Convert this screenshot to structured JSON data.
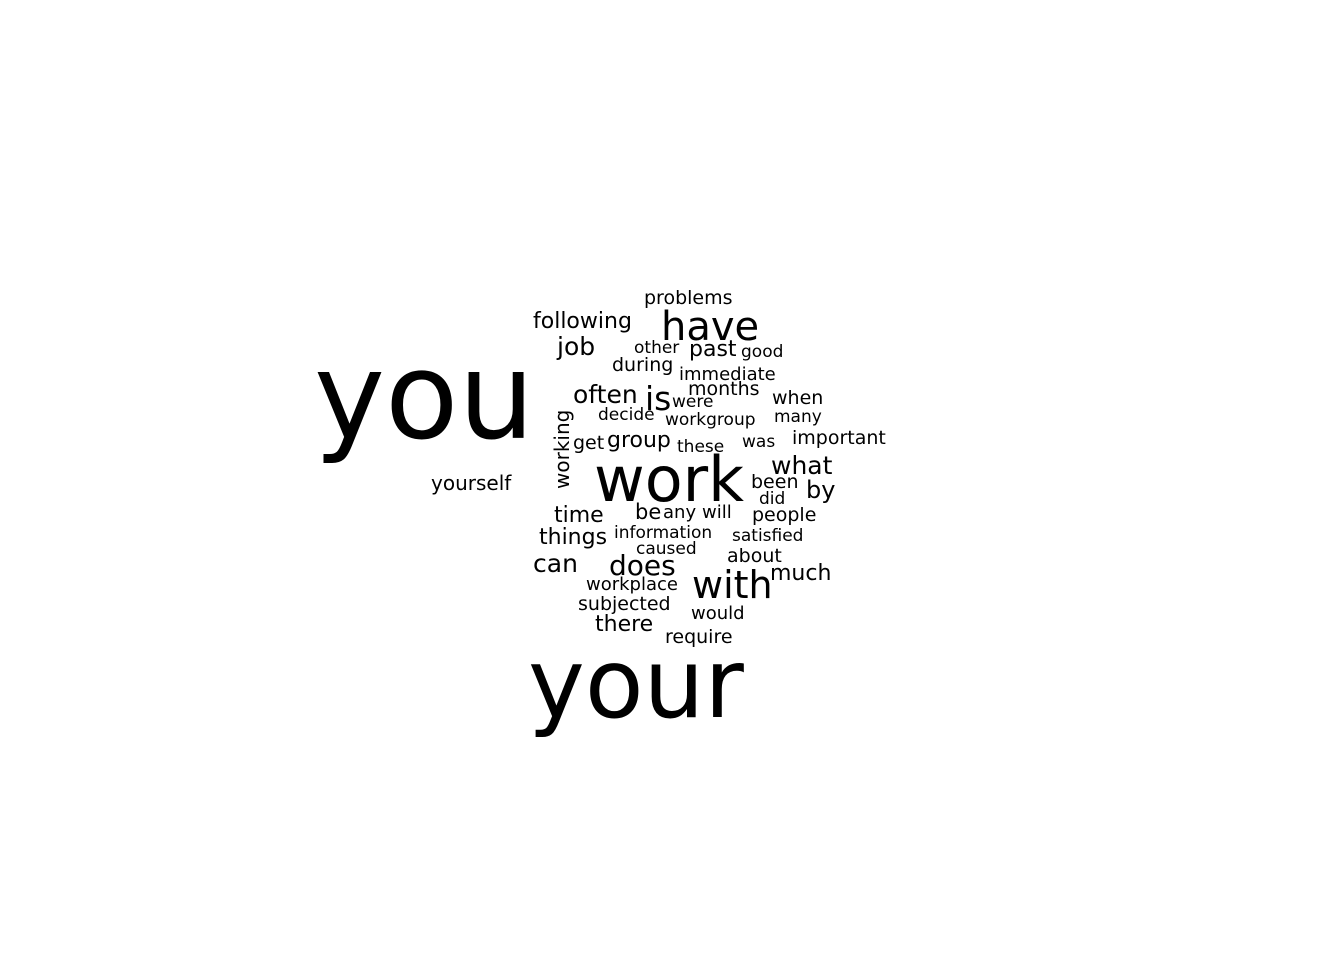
{
  "words": [
    {
      "text": "you",
      "weight": 1.0,
      "vertical": false
    },
    {
      "text": "your",
      "weight": 0.86,
      "vertical": false
    },
    {
      "text": "work",
      "weight": 0.62,
      "vertical": false
    },
    {
      "text": "have",
      "weight": 0.36,
      "vertical": false
    },
    {
      "text": "with",
      "weight": 0.34,
      "vertical": false
    },
    {
      "text": "is",
      "weight": 0.3,
      "vertical": false
    },
    {
      "text": "does",
      "weight": 0.26,
      "vertical": false
    },
    {
      "text": "often",
      "weight": 0.24,
      "vertical": false
    },
    {
      "text": "what",
      "weight": 0.23,
      "vertical": false
    },
    {
      "text": "job",
      "weight": 0.23,
      "vertical": false
    },
    {
      "text": "can",
      "weight": 0.23,
      "vertical": false
    },
    {
      "text": "by",
      "weight": 0.22,
      "vertical": false
    },
    {
      "text": "much",
      "weight": 0.21,
      "vertical": false
    },
    {
      "text": "time",
      "weight": 0.21,
      "vertical": false
    },
    {
      "text": "things",
      "weight": 0.21,
      "vertical": false
    },
    {
      "text": "group",
      "weight": 0.21,
      "vertical": false
    },
    {
      "text": "past",
      "weight": 0.21,
      "vertical": false
    },
    {
      "text": "following",
      "weight": 0.21,
      "vertical": false
    },
    {
      "text": "there",
      "weight": 0.21,
      "vertical": false
    },
    {
      "text": "be",
      "weight": 0.2,
      "vertical": false
    },
    {
      "text": "working",
      "weight": 0.19,
      "vertical": true
    },
    {
      "text": "yourself",
      "weight": 0.19,
      "vertical": false
    },
    {
      "text": "problems",
      "weight": 0.18,
      "vertical": false
    },
    {
      "text": "during",
      "weight": 0.18,
      "vertical": false
    },
    {
      "text": "when",
      "weight": 0.18,
      "vertical": false
    },
    {
      "text": "important",
      "weight": 0.18,
      "vertical": false
    },
    {
      "text": "been",
      "weight": 0.18,
      "vertical": false
    },
    {
      "text": "people",
      "weight": 0.18,
      "vertical": false
    },
    {
      "text": "subjected",
      "weight": 0.18,
      "vertical": false
    },
    {
      "text": "require",
      "weight": 0.18,
      "vertical": false
    },
    {
      "text": "about",
      "weight": 0.18,
      "vertical": false
    },
    {
      "text": "get",
      "weight": 0.18,
      "vertical": false
    },
    {
      "text": "months",
      "weight": 0.18,
      "vertical": false
    },
    {
      "text": "immediate",
      "weight": 0.17,
      "vertical": false
    },
    {
      "text": "workplace",
      "weight": 0.17,
      "vertical": false
    },
    {
      "text": "would",
      "weight": 0.17,
      "vertical": false
    },
    {
      "text": "any",
      "weight": 0.17,
      "vertical": false
    },
    {
      "text": "will",
      "weight": 0.17,
      "vertical": false
    },
    {
      "text": "good",
      "weight": 0.16,
      "vertical": false
    },
    {
      "text": "decide",
      "weight": 0.16,
      "vertical": false
    },
    {
      "text": "were",
      "weight": 0.16,
      "vertical": false
    },
    {
      "text": "workgroup",
      "weight": 0.16,
      "vertical": false
    },
    {
      "text": "many",
      "weight": 0.16,
      "vertical": false
    },
    {
      "text": "these",
      "weight": 0.16,
      "vertical": false
    },
    {
      "text": "was",
      "weight": 0.16,
      "vertical": false
    },
    {
      "text": "did",
      "weight": 0.16,
      "vertical": false
    },
    {
      "text": "information",
      "weight": 0.16,
      "vertical": false
    },
    {
      "text": "satisfied",
      "weight": 0.16,
      "vertical": false
    },
    {
      "text": "caused",
      "weight": 0.16,
      "vertical": false
    },
    {
      "text": "other",
      "weight": 0.16,
      "vertical": false
    }
  ],
  "colors": {
    "text": "#000000",
    "background": "#ffffff"
  }
}
